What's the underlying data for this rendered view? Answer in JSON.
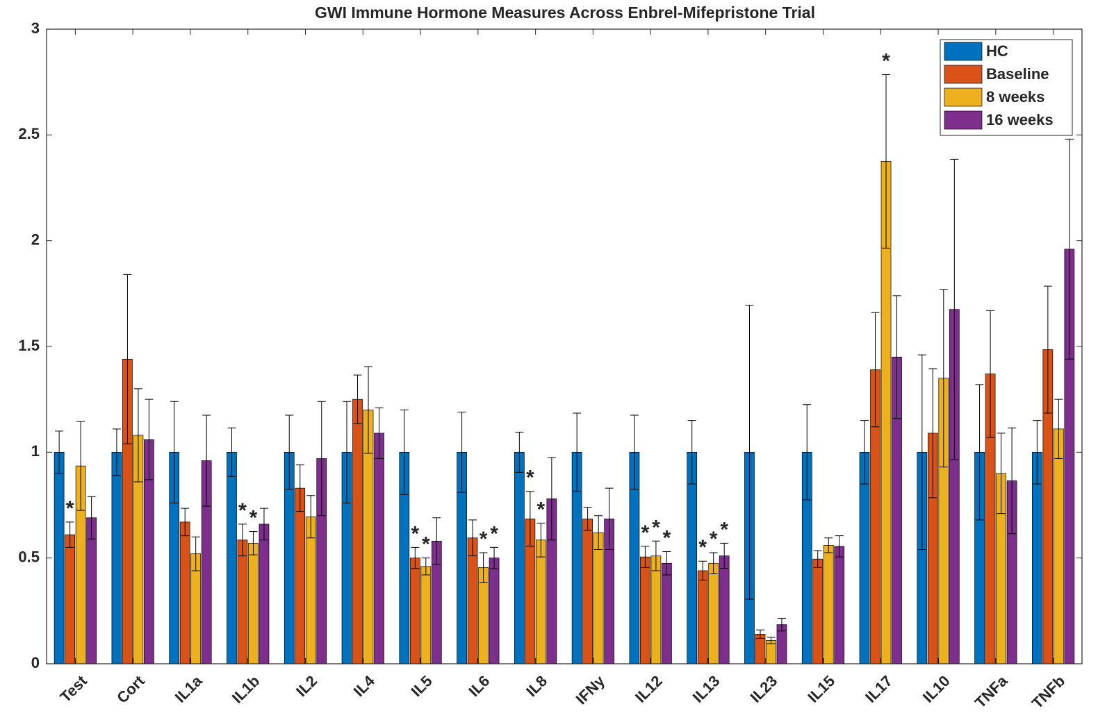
{
  "chart_data": {
    "type": "bar",
    "title": "GWI Immune Hormone Measures Across Enbrel-Mifepristone Trial",
    "categories": [
      "Test",
      "Cort",
      "IL1a",
      "IL1b",
      "IL2",
      "IL4",
      "IL5",
      "IL6",
      "IL8",
      "IFNy",
      "IL12",
      "IL13",
      "IL23",
      "IL15",
      "IL17",
      "IL10",
      "TNFa",
      "TNFb"
    ],
    "series": [
      {
        "name": "HC",
        "color": "#0072BD",
        "values": [
          1,
          1,
          1,
          1,
          1,
          1,
          1,
          1,
          1,
          1,
          1,
          1,
          1,
          1,
          1,
          1,
          1,
          1
        ],
        "errors": [
          0.1,
          0.11,
          0.24,
          0.115,
          0.175,
          0.24,
          0.2,
          0.19,
          0.095,
          0.185,
          0.175,
          0.15,
          0.695,
          0.225,
          0.15,
          0.46,
          0.32,
          0.15
        ]
      },
      {
        "name": "Baseline",
        "color": "#D95319",
        "values": [
          0.61,
          1.44,
          0.67,
          0.585,
          0.83,
          1.25,
          0.5,
          0.595,
          0.685,
          0.685,
          0.505,
          0.44,
          0.14,
          0.495,
          1.39,
          1.09,
          1.37,
          1.485
        ],
        "errors": [
          0.06,
          0.4,
          0.065,
          0.075,
          0.11,
          0.115,
          0.05,
          0.085,
          0.13,
          0.055,
          0.05,
          0.045,
          0.02,
          0.04,
          0.27,
          0.305,
          0.3,
          0.3
        ]
      },
      {
        "name": "8 weeks",
        "color": "#EDB120",
        "values": [
          0.935,
          1.08,
          0.52,
          0.57,
          0.695,
          1.2,
          0.46,
          0.455,
          0.585,
          0.62,
          0.51,
          0.475,
          0.11,
          0.56,
          2.375,
          1.35,
          0.9,
          1.11
        ],
        "errors": [
          0.21,
          0.22,
          0.08,
          0.055,
          0.1,
          0.205,
          0.04,
          0.07,
          0.08,
          0.08,
          0.07,
          0.05,
          0.015,
          0.035,
          0.41,
          0.42,
          0.19,
          0.14
        ]
      },
      {
        "name": "16 weeks",
        "color": "#7E2F8E",
        "values": [
          0.69,
          1.06,
          0.96,
          0.66,
          0.97,
          1.09,
          0.58,
          0.5,
          0.78,
          0.685,
          0.475,
          0.51,
          0.185,
          0.555,
          1.45,
          1.675,
          0.865,
          1.96
        ],
        "errors": [
          0.1,
          0.19,
          0.215,
          0.075,
          0.27,
          0.12,
          0.11,
          0.05,
          0.195,
          0.145,
          0.055,
          0.06,
          0.03,
          0.05,
          0.29,
          0.71,
          0.25,
          0.52
        ]
      }
    ],
    "annotations": [
      {
        "text": "*",
        "category": "Test",
        "series": "Baseline"
      },
      {
        "text": "*",
        "category": "IL1b",
        "series": "Baseline"
      },
      {
        "text": "*",
        "category": "IL1b",
        "series": "8 weeks"
      },
      {
        "text": "*",
        "category": "IL5",
        "series": "Baseline"
      },
      {
        "text": "*",
        "category": "IL5",
        "series": "8 weeks"
      },
      {
        "text": "*",
        "category": "IL6",
        "series": "8 weeks"
      },
      {
        "text": "*",
        "category": "IL6",
        "series": "16 weeks"
      },
      {
        "text": "*",
        "category": "IL8",
        "series": "Baseline"
      },
      {
        "text": "*",
        "category": "IL8",
        "series": "8 weeks"
      },
      {
        "text": "*",
        "category": "IL12",
        "series": "Baseline"
      },
      {
        "text": "*",
        "category": "IL12",
        "series": "8 weeks"
      },
      {
        "text": "*",
        "category": "IL12",
        "series": "16 weeks"
      },
      {
        "text": "*",
        "category": "IL13",
        "series": "Baseline"
      },
      {
        "text": "*",
        "category": "IL13",
        "series": "8 weeks"
      },
      {
        "text": "*",
        "category": "IL13",
        "series": "16 weeks"
      },
      {
        "text": "*",
        "category": "IL17",
        "series": "8 weeks"
      }
    ],
    "ylim": [
      0,
      3
    ],
    "yticks": [
      0,
      0.5,
      1,
      1.5,
      2,
      2.5,
      3
    ],
    "grid": false,
    "legend": "top-right"
  }
}
